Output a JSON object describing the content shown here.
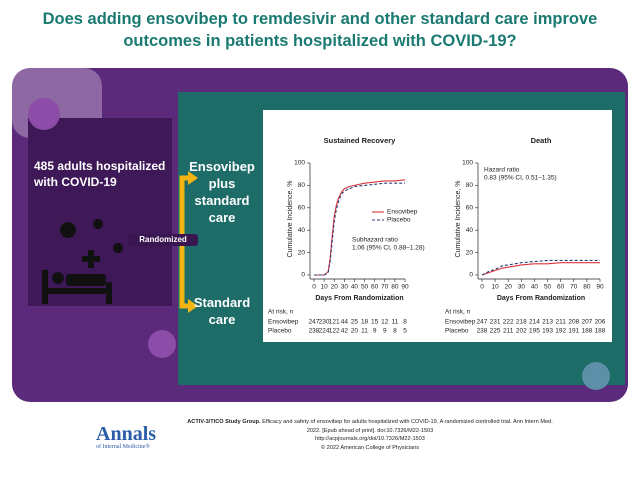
{
  "header": {
    "title": "Does adding ensovibep to remdesivir and other standard care improve outcomes in patients hospitalized with COVID-19?"
  },
  "population": "485 adults hospitalized with COVID-19",
  "randomized": "Randomized",
  "arms": [
    "Ensovibep plus standard care",
    "Standard care"
  ],
  "citation": {
    "authors": "ACTIV-3/TICO Study Group.",
    "lines": [
      "Efficacy and safety of ensovibep for adults hospitalized with COVID-19. A randomized controlled trial. Ann Intern Med.",
      "2022. [Epub ahead of print]. doi:10.7326/M22-1503",
      "http://acpjournals.org/doi/10.7326/M22-1503"
    ],
    "copyright": "© 2022 American College of Physicians"
  },
  "journal": {
    "name": "Annals",
    "subtitle": "of Internal Medicine®"
  },
  "chart_data": [
    {
      "type": "line",
      "title": "Sustained Recovery",
      "xlabel": "Days From Randomization",
      "ylabel": "Cumulative Incidence, %",
      "x": [
        0,
        10,
        14,
        16,
        18,
        20,
        22,
        24,
        26,
        28,
        30,
        35,
        40,
        50,
        60,
        70,
        80,
        90
      ],
      "series": [
        {
          "name": "Ensovibep",
          "color": "#d9343a",
          "line_style": "solid",
          "values": [
            0,
            0,
            3,
            15,
            35,
            52,
            62,
            68,
            72,
            75,
            77,
            79,
            80,
            82,
            83,
            84,
            84,
            85
          ]
        },
        {
          "name": "Placebo",
          "color": "#2c3e7a",
          "line_style": "dashed",
          "values": [
            0,
            0,
            2,
            12,
            30,
            48,
            58,
            65,
            70,
            73,
            75,
            77,
            79,
            80,
            81,
            82,
            82,
            82
          ]
        }
      ],
      "xlim": [
        0,
        90
      ],
      "xticks": [
        0,
        10,
        20,
        30,
        40,
        50,
        60,
        70,
        80,
        90
      ],
      "ylim": [
        0,
        100
      ],
      "yticks": [
        0,
        20,
        40,
        60,
        80,
        100
      ],
      "legend": "center-right",
      "annotation": [
        "Subhazard ratio",
        "1.06 (95% CI, 0.88–1.28)"
      ],
      "at_risk": {
        "label": "At risk, n",
        "rows": [
          {
            "name": "Ensovibep",
            "values": [
              247,
              230,
              121,
              44,
              25,
              18,
              15,
              12,
              11,
              8
            ]
          },
          {
            "name": "Placebo",
            "values": [
              238,
              224,
              122,
              42,
              20,
              11,
              9,
              9,
              8,
              5
            ]
          }
        ]
      }
    },
    {
      "type": "line",
      "title": "Death",
      "xlabel": "Days From Randomization",
      "ylabel": "Cumulative Incidence, %",
      "x": [
        0,
        5,
        10,
        15,
        20,
        30,
        40,
        50,
        60,
        70,
        80,
        90
      ],
      "series": [
        {
          "name": "Ensovibep",
          "color": "#d9343a",
          "line_style": "solid",
          "values": [
            0,
            2,
            4,
            6,
            7,
            9,
            10,
            10,
            11,
            11,
            11,
            11
          ]
        },
        {
          "name": "Placebo",
          "color": "#2c3e7a",
          "line_style": "dashed",
          "values": [
            0,
            3,
            5,
            8,
            9,
            11,
            12,
            13,
            13,
            13,
            13,
            13
          ]
        }
      ],
      "xlim": [
        0,
        90
      ],
      "xticks": [
        0,
        10,
        20,
        30,
        40,
        50,
        60,
        70,
        80,
        90
      ],
      "ylim": [
        0,
        100
      ],
      "yticks": [
        0,
        20,
        40,
        60,
        80,
        100
      ],
      "annotation": [
        "Hazard ratio",
        "0.83 (95% CI, 0.51–1.35)"
      ],
      "at_risk": {
        "label": "At risk, n",
        "rows": [
          {
            "name": "Ensovibep",
            "values": [
              247,
              231,
              222,
              218,
              214,
              213,
              211,
              208,
              207,
              206
            ]
          },
          {
            "name": "Placebo",
            "values": [
              238,
              225,
              211,
              202,
              195,
              193,
              192,
              191,
              188,
              188
            ]
          }
        ]
      }
    }
  ]
}
